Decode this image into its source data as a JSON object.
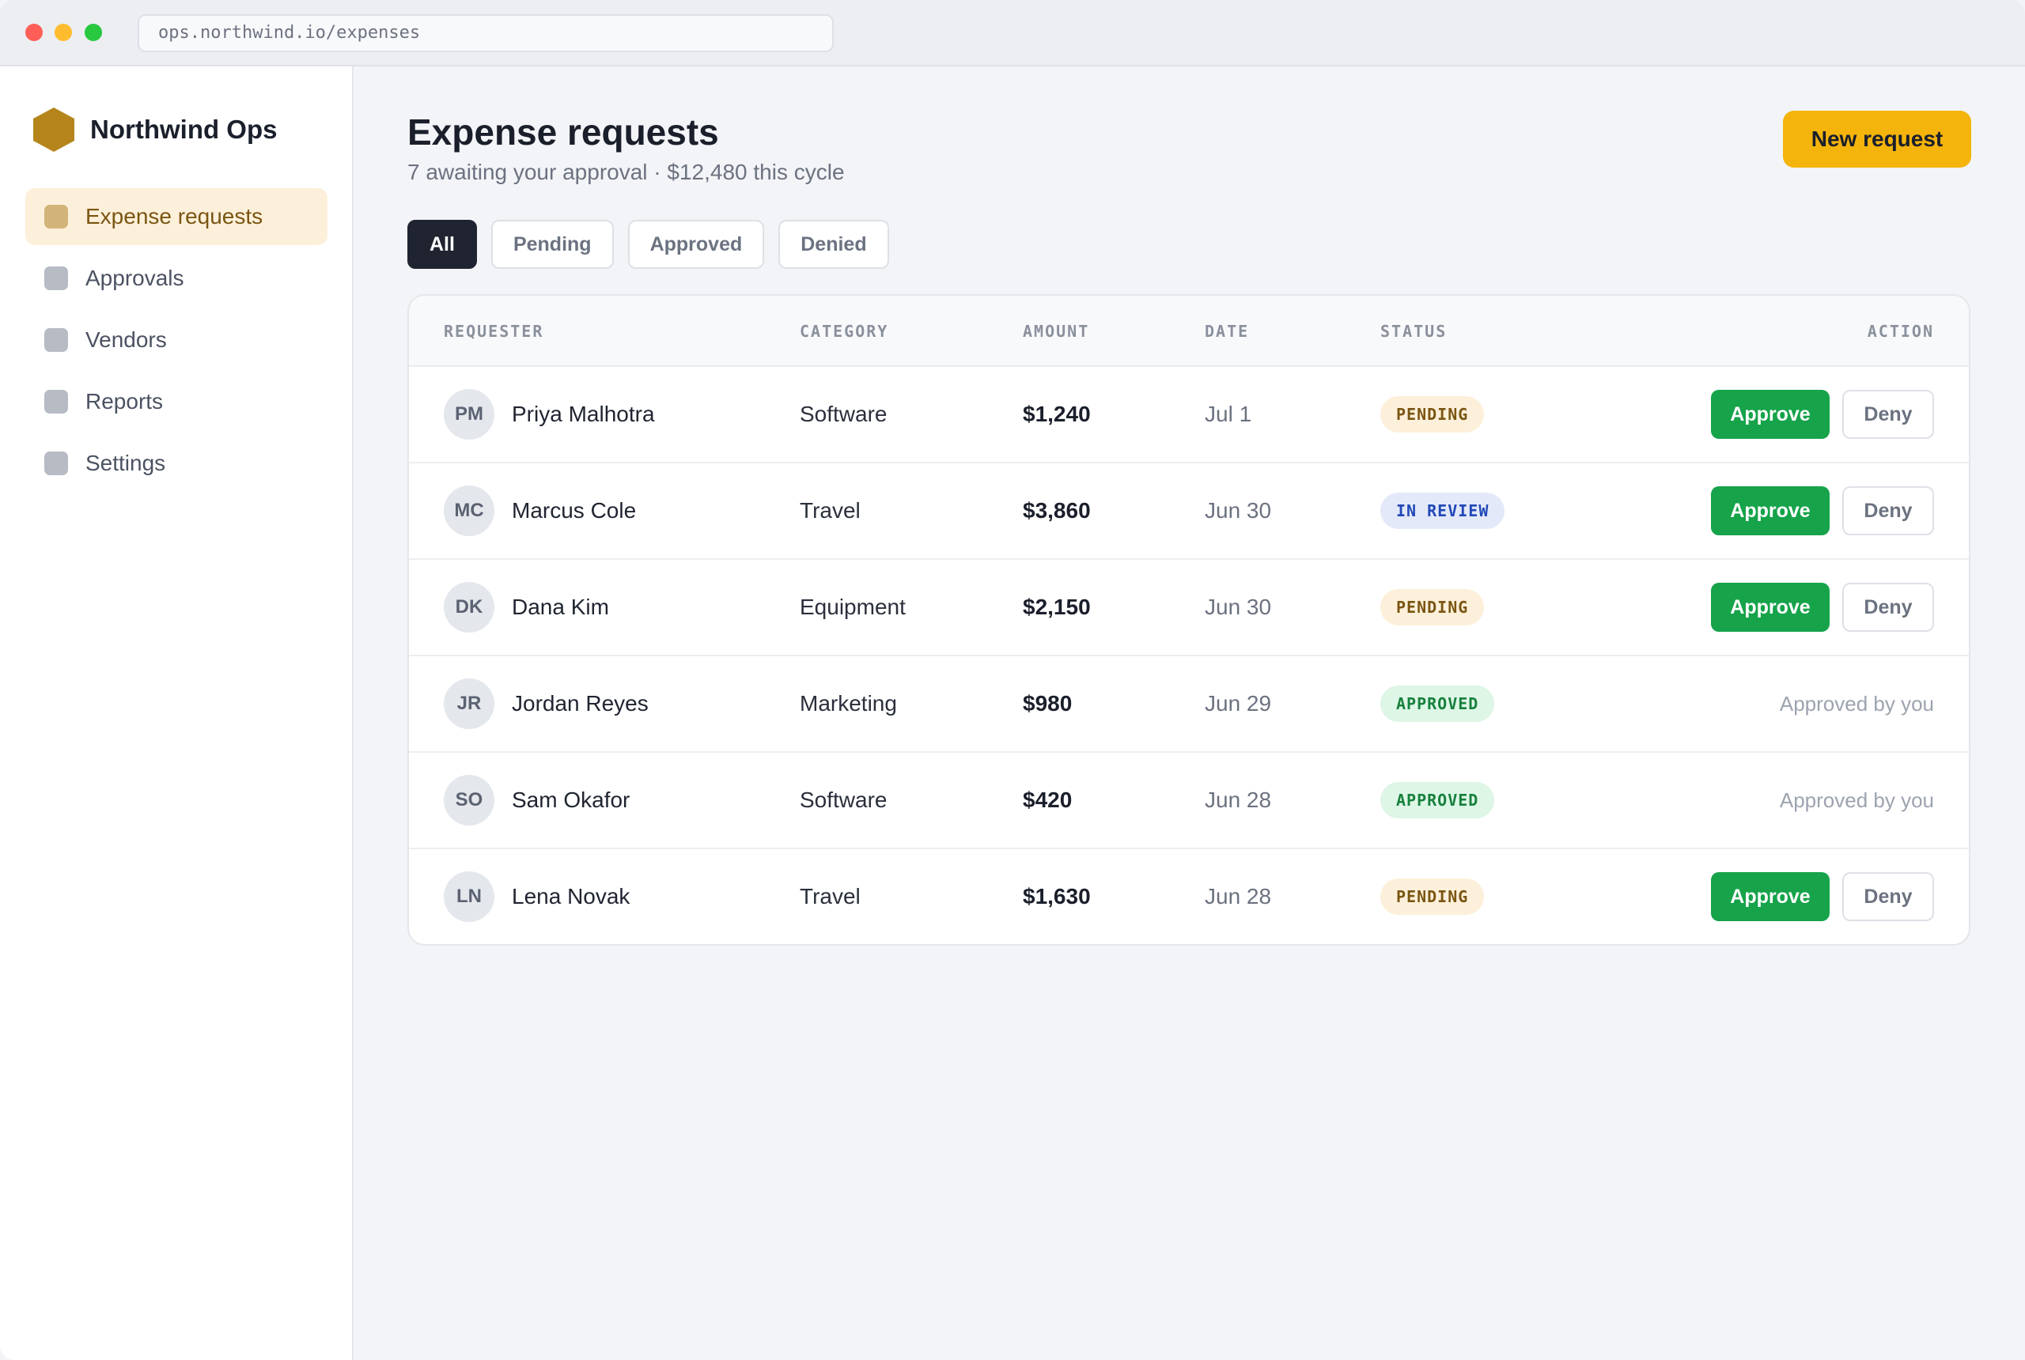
{
  "browser": {
    "url": "ops.northwind.io/expenses"
  },
  "sidebar": {
    "brand": "Northwind Ops",
    "items": [
      {
        "label": "Expense requests",
        "active": true
      },
      {
        "label": "Approvals",
        "active": false
      },
      {
        "label": "Vendors",
        "active": false
      },
      {
        "label": "Reports",
        "active": false
      },
      {
        "label": "Settings",
        "active": false
      }
    ]
  },
  "header": {
    "title": "Expense requests",
    "subtitle": "7 awaiting your approval · $12,480 this cycle",
    "new_button": "New request"
  },
  "filters": [
    {
      "label": "All",
      "active": true
    },
    {
      "label": "Pending",
      "active": false
    },
    {
      "label": "Approved",
      "active": false
    },
    {
      "label": "Denied",
      "active": false
    }
  ],
  "table": {
    "columns": {
      "requester": "REQUESTER",
      "category": "CATEGORY",
      "amount": "AMOUNT",
      "date": "DATE",
      "status": "STATUS",
      "action": "ACTION"
    },
    "approve_label": "Approve",
    "deny_label": "Deny",
    "rows": [
      {
        "initials": "PM",
        "name": "Priya Malhotra",
        "category": "Software",
        "amount": "$1,240",
        "date": "Jul 1",
        "status": "PENDING",
        "status_kind": "pending",
        "note": ""
      },
      {
        "initials": "MC",
        "name": "Marcus Cole",
        "category": "Travel",
        "amount": "$3,860",
        "date": "Jun 30",
        "status": "IN REVIEW",
        "status_kind": "review",
        "note": ""
      },
      {
        "initials": "DK",
        "name": "Dana Kim",
        "category": "Equipment",
        "amount": "$2,150",
        "date": "Jun 30",
        "status": "PENDING",
        "status_kind": "pending",
        "note": ""
      },
      {
        "initials": "JR",
        "name": "Jordan Reyes",
        "category": "Marketing",
        "amount": "$980",
        "date": "Jun 29",
        "status": "APPROVED",
        "status_kind": "approved",
        "note": "Approved by you"
      },
      {
        "initials": "SO",
        "name": "Sam Okafor",
        "category": "Software",
        "amount": "$420",
        "date": "Jun 28",
        "status": "APPROVED",
        "status_kind": "approved",
        "note": "Approved by you"
      },
      {
        "initials": "LN",
        "name": "Lena Novak",
        "category": "Travel",
        "amount": "$1,630",
        "date": "Jun 28",
        "status": "PENDING",
        "status_kind": "pending",
        "note": ""
      }
    ]
  },
  "colors": {
    "accent": "#f4b40c",
    "brand": "#b5851c",
    "approve": "#16a34a",
    "pending": "#7a5512",
    "review": "#2148b8",
    "approved": "#17803d"
  }
}
